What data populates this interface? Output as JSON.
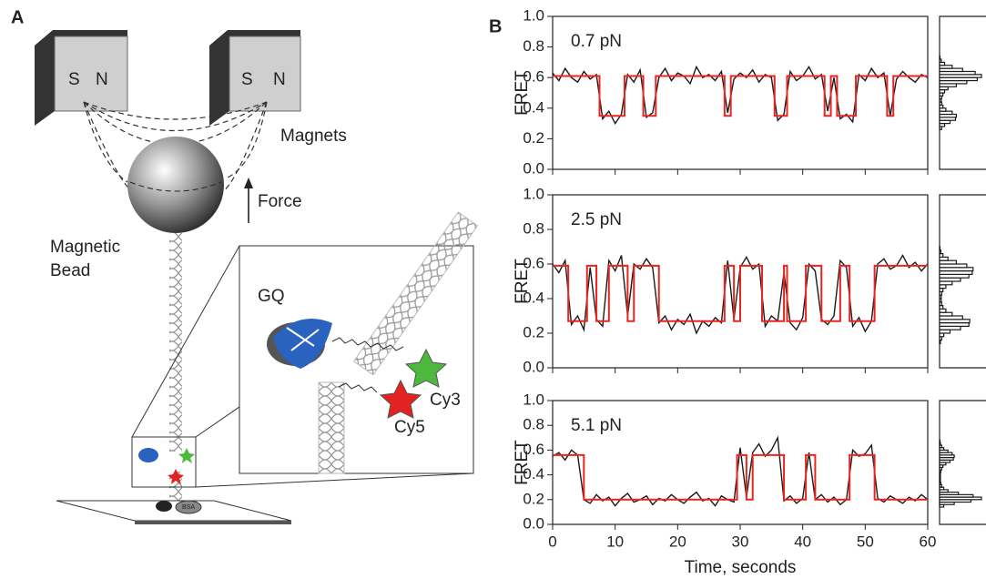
{
  "panel_a": {
    "label": "A",
    "magnet_left": [
      "S",
      "N"
    ],
    "magnet_right": [
      "S",
      "N"
    ],
    "magnets": "Magnets",
    "force": "Force",
    "bead": [
      "Magnetic",
      "Bead"
    ],
    "gq": "GQ",
    "cy3": "Cy3",
    "cy5": "Cy5",
    "bsa": "BSA"
  },
  "panel_b": {
    "label": "B"
  },
  "chart_data": [
    {
      "type": "line",
      "annotation": "0.7 pN",
      "ylabel": "FRET",
      "xlim": [
        0,
        60
      ],
      "xticks": [
        0,
        10,
        20,
        30,
        40,
        50,
        60
      ],
      "show_xtick_labels": false,
      "ylim": [
        0,
        1
      ],
      "yticks": [
        {
          "value": 0,
          "label": "0.0"
        },
        0.2,
        0.4,
        0.6,
        0.8,
        {
          "value": 1,
          "label": "1.0"
        }
      ],
      "series": [
        {
          "color": "#1a1a1a",
          "x": [
            0,
            1,
            2,
            3,
            4,
            5,
            6,
            7,
            8,
            9,
            10,
            11,
            12,
            13,
            14,
            15,
            16,
            17,
            18,
            19,
            20,
            21,
            22,
            23,
            24,
            25,
            26,
            27,
            28,
            29,
            30,
            31,
            32,
            33,
            34,
            35,
            36,
            37,
            38,
            39,
            40,
            41,
            42,
            43,
            44,
            45,
            46,
            47,
            48,
            49,
            50,
            51,
            52,
            53,
            54,
            55,
            56,
            57,
            58,
            59,
            60
          ],
          "values": [
            0.63,
            0.58,
            0.66,
            0.6,
            0.57,
            0.64,
            0.59,
            0.62,
            0.33,
            0.38,
            0.3,
            0.36,
            0.62,
            0.57,
            0.65,
            0.34,
            0.37,
            0.6,
            0.66,
            0.58,
            0.63,
            0.61,
            0.56,
            0.67,
            0.6,
            0.62,
            0.58,
            0.64,
            0.37,
            0.59,
            0.63,
            0.6,
            0.65,
            0.57,
            0.62,
            0.6,
            0.32,
            0.36,
            0.64,
            0.58,
            0.61,
            0.67,
            0.59,
            0.62,
            0.38,
            0.6,
            0.33,
            0.36,
            0.31,
            0.62,
            0.58,
            0.66,
            0.6,
            0.63,
            0.35,
            0.59,
            0.64,
            0.6,
            0.57,
            0.62,
            0.6
          ]
        },
        {
          "color": "#e8251f",
          "x": [
            0,
            7.5,
            7.5,
            11.5,
            11.5,
            14.5,
            14.5,
            16.5,
            16.5,
            27.5,
            27.5,
            28.5,
            28.5,
            35.5,
            35.5,
            37.5,
            37.5,
            43.5,
            43.5,
            44.5,
            44.5,
            45.5,
            45.5,
            48.5,
            48.5,
            53.5,
            53.5,
            54.5,
            54.5,
            60
          ],
          "values": [
            0.61,
            0.61,
            0.35,
            0.35,
            0.61,
            0.61,
            0.35,
            0.35,
            0.61,
            0.61,
            0.35,
            0.35,
            0.61,
            0.61,
            0.35,
            0.35,
            0.61,
            0.61,
            0.35,
            0.35,
            0.61,
            0.61,
            0.35,
            0.35,
            0.61,
            0.61,
            0.35,
            0.35,
            0.61,
            0.61
          ]
        }
      ],
      "histogram": {
        "color": "#1a1a1a",
        "xlim": [
          0,
          100
        ],
        "bins": [
          0.14,
          0.16,
          0.18,
          0.2,
          0.22,
          0.24,
          0.26,
          0.28,
          0.3,
          0.32,
          0.34,
          0.36,
          0.38,
          0.4,
          0.42,
          0.44,
          0.46,
          0.48,
          0.5,
          0.52,
          0.54,
          0.56,
          0.58,
          0.6,
          0.62,
          0.64,
          0.66,
          0.68,
          0.7,
          0.72,
          0.74
        ],
        "counts": [
          0,
          0,
          0,
          0,
          0,
          0,
          5,
          12,
          25,
          38,
          40,
          30,
          15,
          8,
          5,
          4,
          5,
          8,
          12,
          20,
          40,
          65,
          90,
          100,
          85,
          55,
          30,
          12,
          4,
          1
        ]
      }
    },
    {
      "type": "line",
      "annotation": "2.5 pN",
      "ylabel": "FRET",
      "xlim": [
        0,
        60
      ],
      "xticks": [
        0,
        10,
        20,
        30,
        40,
        50,
        60
      ],
      "show_xtick_labels": false,
      "ylim": [
        0,
        1
      ],
      "yticks": [
        {
          "value": 0,
          "label": "0.0"
        },
        0.2,
        0.4,
        0.6,
        0.8,
        {
          "value": 1,
          "label": "1.0"
        }
      ],
      "series": [
        {
          "color": "#1a1a1a",
          "x": [
            0,
            1,
            2,
            3,
            4,
            5,
            6,
            7,
            8,
            9,
            10,
            11,
            12,
            13,
            14,
            15,
            16,
            17,
            18,
            19,
            20,
            21,
            22,
            23,
            24,
            25,
            26,
            27,
            28,
            29,
            30,
            31,
            32,
            33,
            34,
            35,
            36,
            37,
            38,
            39,
            40,
            41,
            42,
            43,
            44,
            45,
            46,
            47,
            48,
            49,
            50,
            51,
            52,
            53,
            54,
            55,
            56,
            57,
            58,
            59,
            60
          ],
          "values": [
            0.6,
            0.55,
            0.62,
            0.25,
            0.3,
            0.22,
            0.58,
            0.28,
            0.24,
            0.62,
            0.56,
            0.65,
            0.3,
            0.6,
            0.57,
            0.63,
            0.58,
            0.26,
            0.3,
            0.22,
            0.28,
            0.25,
            0.31,
            0.2,
            0.27,
            0.24,
            0.29,
            0.26,
            0.62,
            0.28,
            0.58,
            0.64,
            0.57,
            0.6,
            0.24,
            0.3,
            0.27,
            0.55,
            0.26,
            0.22,
            0.29,
            0.6,
            0.56,
            0.28,
            0.25,
            0.3,
            0.62,
            0.58,
            0.24,
            0.29,
            0.21,
            0.27,
            0.6,
            0.63,
            0.57,
            0.59,
            0.65,
            0.58,
            0.61,
            0.56,
            0.6
          ]
        },
        {
          "color": "#e8251f",
          "x": [
            0,
            2.5,
            2.5,
            5.5,
            5.5,
            7,
            7,
            9,
            9,
            12,
            12,
            13,
            13,
            17,
            17,
            27.5,
            27.5,
            29,
            29,
            30,
            30,
            33.5,
            33.5,
            37,
            37,
            37.5,
            37.5,
            40.5,
            40.5,
            43,
            43,
            46,
            46,
            47.5,
            47.5,
            51.5,
            51.5,
            60
          ],
          "values": [
            0.59,
            0.59,
            0.27,
            0.27,
            0.59,
            0.59,
            0.27,
            0.27,
            0.59,
            0.59,
            0.27,
            0.27,
            0.59,
            0.59,
            0.27,
            0.27,
            0.59,
            0.59,
            0.27,
            0.27,
            0.59,
            0.59,
            0.27,
            0.27,
            0.59,
            0.59,
            0.27,
            0.27,
            0.59,
            0.59,
            0.27,
            0.27,
            0.59,
            0.59,
            0.27,
            0.27,
            0.59,
            0.59
          ]
        }
      ],
      "histogram": {
        "color": "#1a1a1a",
        "xlim": [
          0,
          100
        ],
        "bins": [
          0.14,
          0.16,
          0.18,
          0.2,
          0.22,
          0.24,
          0.26,
          0.28,
          0.3,
          0.32,
          0.34,
          0.36,
          0.38,
          0.4,
          0.42,
          0.44,
          0.46,
          0.48,
          0.5,
          0.52,
          0.54,
          0.56,
          0.58,
          0.6,
          0.62,
          0.64,
          0.66,
          0.68,
          0.7,
          0.72,
          0.74
        ],
        "counts": [
          2,
          5,
          10,
          25,
          50,
          70,
          72,
          55,
          30,
          15,
          8,
          5,
          4,
          4,
          5,
          8,
          15,
          30,
          50,
          70,
          78,
          80,
          65,
          40,
          20,
          8,
          3,
          1,
          0,
          0
        ]
      }
    },
    {
      "type": "line",
      "annotation": "5.1 pN",
      "ylabel": "FRET",
      "xlabel": "Time, seconds",
      "xlim": [
        0,
        60
      ],
      "xticks": [
        0,
        10,
        20,
        30,
        40,
        50,
        60
      ],
      "show_xtick_labels": true,
      "ylim": [
        0,
        1
      ],
      "yticks": [
        {
          "value": 0,
          "label": "0.0"
        },
        0.2,
        0.4,
        0.6,
        0.8,
        {
          "value": 1,
          "label": "1.0"
        }
      ],
      "series": [
        {
          "color": "#1a1a1a",
          "x": [
            0,
            1,
            2,
            3,
            4,
            5,
            6,
            7,
            8,
            9,
            10,
            11,
            12,
            13,
            14,
            15,
            16,
            17,
            18,
            19,
            20,
            21,
            22,
            23,
            24,
            25,
            26,
            27,
            28,
            29,
            30,
            31,
            32,
            33,
            34,
            35,
            36,
            37,
            38,
            39,
            40,
            41,
            42,
            43,
            44,
            45,
            46,
            47,
            48,
            49,
            50,
            51,
            52,
            53,
            54,
            55,
            56,
            57,
            58,
            59,
            60
          ],
          "values": [
            0.55,
            0.58,
            0.52,
            0.6,
            0.56,
            0.2,
            0.17,
            0.24,
            0.19,
            0.22,
            0.15,
            0.21,
            0.25,
            0.18,
            0.2,
            0.23,
            0.16,
            0.21,
            0.19,
            0.24,
            0.2,
            0.17,
            0.22,
            0.26,
            0.19,
            0.21,
            0.15,
            0.23,
            0.2,
            0.18,
            0.62,
            0.22,
            0.58,
            0.65,
            0.55,
            0.6,
            0.7,
            0.19,
            0.23,
            0.17,
            0.21,
            0.58,
            0.2,
            0.24,
            0.18,
            0.22,
            0.16,
            0.2,
            0.6,
            0.55,
            0.57,
            0.64,
            0.21,
            0.18,
            0.23,
            0.2,
            0.17,
            0.22,
            0.19,
            0.24,
            0.2
          ]
        },
        {
          "color": "#e8251f",
          "x": [
            0,
            5,
            5,
            29.5,
            29.5,
            31,
            31,
            32,
            32,
            37,
            37,
            40.5,
            40.5,
            42,
            42,
            47.5,
            47.5,
            51.5,
            51.5,
            60
          ],
          "values": [
            0.56,
            0.56,
            0.2,
            0.2,
            0.56,
            0.56,
            0.2,
            0.2,
            0.56,
            0.56,
            0.2,
            0.2,
            0.56,
            0.56,
            0.2,
            0.2,
            0.56,
            0.56,
            0.2,
            0.2
          ]
        }
      ],
      "histogram": {
        "color": "#1a1a1a",
        "xlim": [
          0,
          100
        ],
        "bins": [
          0.14,
          0.16,
          0.18,
          0.2,
          0.22,
          0.24,
          0.26,
          0.28,
          0.3,
          0.32,
          0.34,
          0.36,
          0.38,
          0.4,
          0.42,
          0.44,
          0.46,
          0.48,
          0.5,
          0.52,
          0.54,
          0.56,
          0.58,
          0.6,
          0.62,
          0.64,
          0.66,
          0.68,
          0.7,
          0.72,
          0.74
        ],
        "counts": [
          10,
          35,
          75,
          100,
          80,
          45,
          20,
          10,
          5,
          3,
          2,
          2,
          2,
          2,
          3,
          5,
          8,
          15,
          25,
          33,
          35,
          30,
          20,
          10,
          5,
          2,
          1,
          0,
          0,
          0
        ]
      }
    }
  ]
}
